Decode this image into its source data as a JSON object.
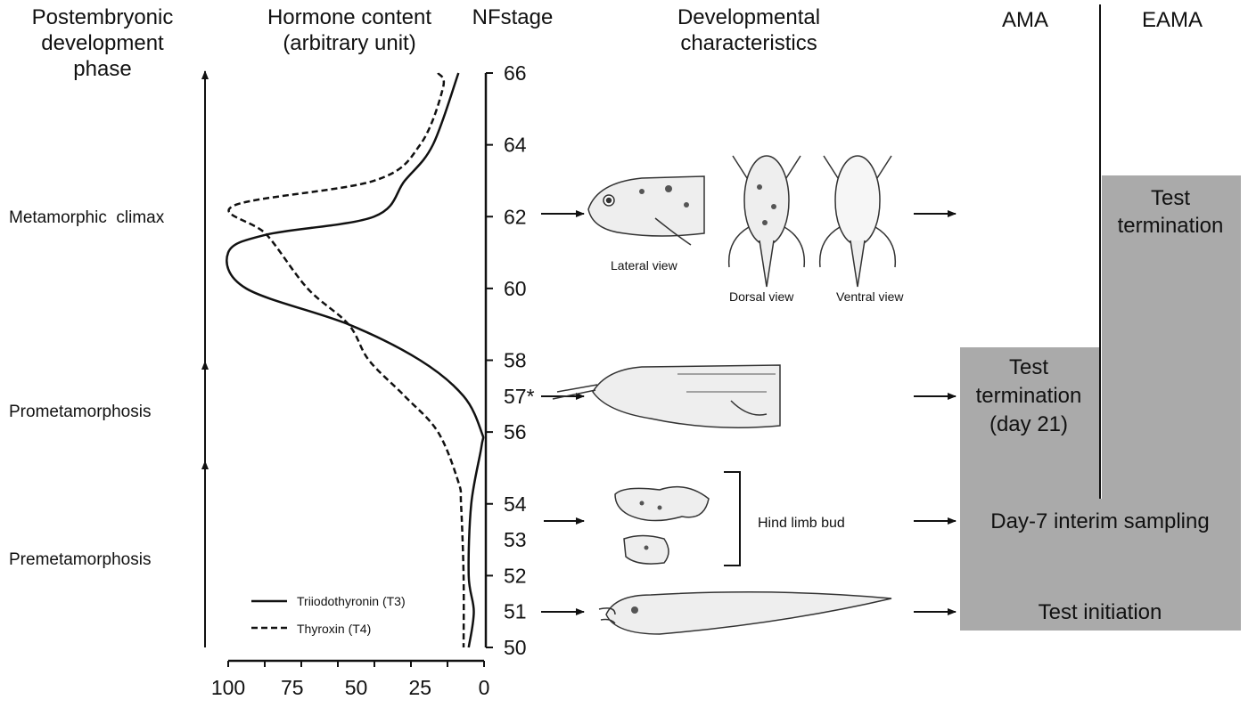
{
  "headers": {
    "phase": [
      "Postembryonic",
      "development",
      "phase"
    ],
    "hormone": [
      "Hormone content",
      "(arbitrary unit)"
    ],
    "stage": "NFstage",
    "characteristics": [
      "Developmental",
      "characteristics"
    ],
    "ama": "AMA",
    "eama": "EAMA"
  },
  "phases": [
    "Metamorphic  climax",
    "Prometamorphosis",
    "Premetamorphosis"
  ],
  "illustration_labels": {
    "lateral": "Lateral view",
    "dorsal": "Dorsal view",
    "ventral": "Ventral view",
    "hind_limb": "Hind limb bud"
  },
  "boxes": {
    "ama_termination": [
      "Test",
      "termination",
      "(day 21)"
    ],
    "eama_termination": [
      "Test",
      "termination"
    ],
    "interim": "Day-7 interim sampling",
    "initiation": "Test initiation"
  },
  "colors": {
    "box_fill": "#aaaaaa",
    "line": "#111111"
  },
  "chart_data": {
    "type": "line",
    "orientation": "horizontal-value-vertical-stage",
    "xlabel": "Hormone content (arbitrary unit)",
    "ylabel": "NFstage",
    "xlim": [
      100,
      0
    ],
    "x_ticks": [
      "100",
      "75",
      "50",
      "25",
      "0"
    ],
    "y_ticks": [
      "66",
      "64",
      "62",
      "60",
      "58",
      "57*",
      "56",
      "54",
      "53",
      "52",
      "51",
      "50"
    ],
    "y_tick_values": [
      66,
      64,
      62,
      60,
      58,
      57,
      56,
      54,
      53,
      52,
      51,
      50
    ],
    "ylim": [
      50,
      66
    ],
    "legend": "bottom-left",
    "series": [
      {
        "name": "Triiodothyronin (T3)",
        "style": "solid",
        "points": [
          [
            66,
            10
          ],
          [
            64,
            20
          ],
          [
            63,
            31
          ],
          [
            62,
            43
          ],
          [
            61.5,
            85
          ],
          [
            61,
            100
          ],
          [
            60,
            93
          ],
          [
            59,
            53
          ],
          [
            58,
            25
          ],
          [
            57,
            8
          ],
          [
            56,
            1
          ],
          [
            55.6,
            1
          ],
          [
            54,
            5
          ],
          [
            52,
            6
          ],
          [
            51,
            4
          ],
          [
            50,
            6
          ]
        ]
      },
      {
        "name": "Thyroxin (T4)",
        "style": "dashed",
        "points": [
          [
            66,
            18
          ],
          [
            65.6,
            16
          ],
          [
            64,
            25
          ],
          [
            63,
            43
          ],
          [
            62.3,
            98
          ],
          [
            61.5,
            85
          ],
          [
            60,
            69
          ],
          [
            59,
            53
          ],
          [
            58,
            45
          ],
          [
            57,
            31
          ],
          [
            56,
            18
          ],
          [
            54.6,
            10
          ],
          [
            54,
            9
          ],
          [
            52,
            8
          ],
          [
            50,
            8
          ]
        ]
      }
    ]
  }
}
